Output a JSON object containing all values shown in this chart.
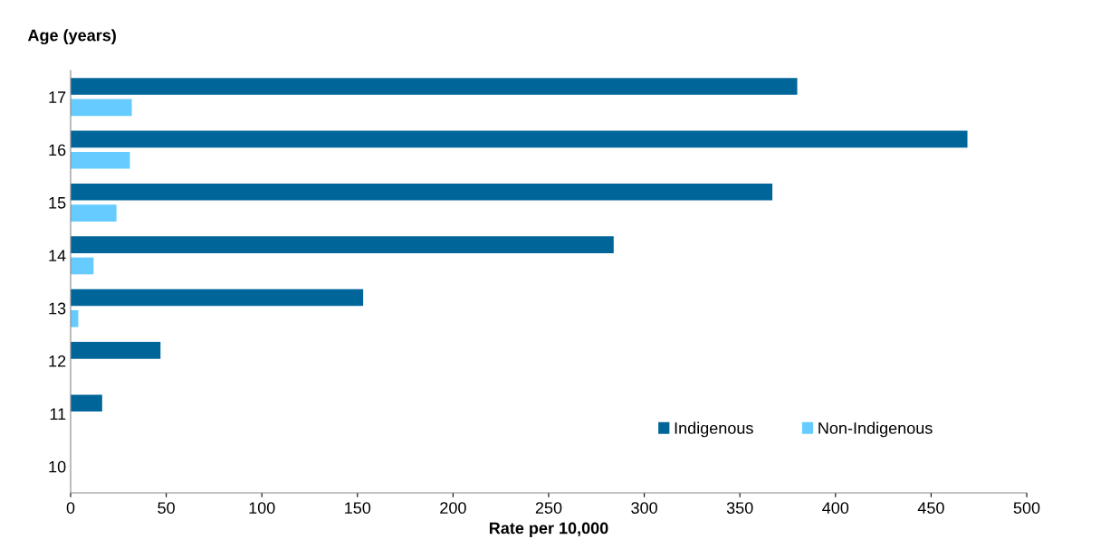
{
  "chart_data": {
    "type": "bar",
    "orientation": "horizontal",
    "ylabel": "Age (years)",
    "xlabel": "Rate per 10,000",
    "categories": [
      "17",
      "16",
      "15",
      "14",
      "13",
      "12",
      "11",
      "10"
    ],
    "series": [
      {
        "name": "Indigenous",
        "color": "#006699",
        "values": [
          380,
          469,
          367,
          284,
          153,
          47,
          16.5,
          0
        ]
      },
      {
        "name": "Non-Indigenous",
        "color": "#66ccff",
        "values": [
          32,
          31,
          24,
          12,
          4,
          null,
          0,
          0
        ]
      }
    ],
    "xlim": [
      0,
      500
    ],
    "xticks": [
      0,
      50,
      100,
      150,
      200,
      250,
      300,
      350,
      400,
      450,
      500
    ],
    "grid": false,
    "legend": "bottom right"
  }
}
